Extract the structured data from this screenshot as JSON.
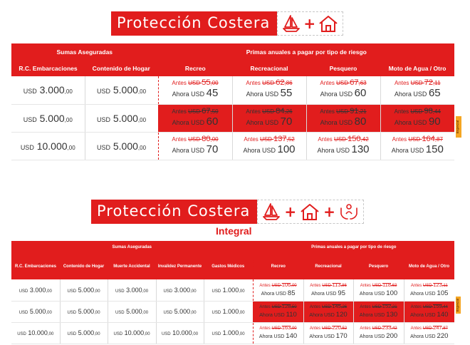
{
  "banner1": {
    "title": "Protección Costera"
  },
  "banner2": {
    "title": "Protección Costera",
    "subtitle": "Integral"
  },
  "especial_label": "Especial",
  "table1": {
    "group_sums": "Sumas Aseguradas",
    "group_primes": "Primas anuales a pagar por tipo de riesgo",
    "col_rc": "R.C. Embarcaciones",
    "col_hogar": "Contenido de Hogar",
    "col_recreo": "Recreo",
    "col_recreacional": "Recreacional",
    "col_pesquero": "Pesquero",
    "col_moto": "Moto de Agua / Otro",
    "rows": [
      {
        "rc": "3.000",
        "hogar": "5.000",
        "p": [
          {
            "a": "55",
            "ac": ",00",
            "n": "45"
          },
          {
            "a": "62",
            "ac": ",86",
            "n": "55"
          },
          {
            "a": "67",
            "ac": ",63",
            "n": "60"
          },
          {
            "a": "72",
            "ac": ",11",
            "n": "65"
          }
        ]
      },
      {
        "rc": "5.000",
        "hogar": "5.000",
        "p": [
          {
            "a": "67",
            "ac": ",50",
            "n": "60"
          },
          {
            "a": "84",
            "ac": ",26",
            "n": "70"
          },
          {
            "a": "91",
            "ac": ",21",
            "n": "80"
          },
          {
            "a": "98",
            "ac": ",44",
            "n": "90"
          }
        ]
      },
      {
        "rc": "10.000",
        "hogar": "5.000",
        "p": [
          {
            "a": "80",
            "ac": ",00",
            "n": "70"
          },
          {
            "a": "137",
            "ac": ",52",
            "n": "100"
          },
          {
            "a": "150",
            "ac": ",42",
            "n": "130"
          },
          {
            "a": "164",
            "ac": ",87",
            "n": "150"
          }
        ]
      }
    ]
  },
  "table2": {
    "group_sums": "Sumas Aseguradas",
    "group_primes": "Primas anuales a pagar por tipo de riesgo",
    "col_rc": "R.C. Embarcaciones",
    "col_hogar": "Contenido de Hogar",
    "col_muerte": "Muerte Accidental",
    "col_invalidez": "Invalidez Permanente",
    "col_gastos": "Gastos Médicos",
    "col_recreo": "Recreo",
    "col_recreacional": "Recreacional",
    "col_pesquero": "Pesquero",
    "col_moto": "Moto de Agua / Otro",
    "rows": [
      {
        "s": [
          "3.000",
          "5.000",
          "3.000",
          "3.000",
          "1.000"
        ],
        "p": [
          {
            "a": "106",
            "ac": ",00",
            "n": "85"
          },
          {
            "a": "113",
            "ac": ",86",
            "n": "95"
          },
          {
            "a": "118",
            "ac": ",63",
            "n": "100"
          },
          {
            "a": "123",
            "ac": ",11",
            "n": "105"
          }
        ]
      },
      {
        "s": [
          "5.000",
          "5.000",
          "5.000",
          "5.000",
          "1.000"
        ],
        "p": [
          {
            "a": "128",
            "ac": ",50",
            "n": "110"
          },
          {
            "a": "145",
            "ac": ",26",
            "n": "120"
          },
          {
            "a": "152",
            "ac": ",21",
            "n": "130"
          },
          {
            "a": "159",
            "ac": ",44",
            "n": "140"
          }
        ]
      },
      {
        "s": [
          "10.000",
          "5.000",
          "10.000",
          "10.000",
          "1.000"
        ],
        "p": [
          {
            "a": "163",
            "ac": ",00",
            "n": "140"
          },
          {
            "a": "220",
            "ac": ",52",
            "n": "170"
          },
          {
            "a": "233",
            "ac": ",42",
            "n": "200"
          },
          {
            "a": "247",
            "ac": ",87",
            "n": "220"
          }
        ]
      }
    ]
  },
  "labels": {
    "usd": "USD",
    "cents": ",00",
    "antes": "Antes",
    "ahora": "Ahora USD"
  },
  "colors": {
    "brand_red": "#e11d1d",
    "badge_orange": "#f5a623"
  },
  "icons": [
    "sailboat-icon",
    "plus-icon",
    "house-icon",
    "hands-person-icon"
  ]
}
